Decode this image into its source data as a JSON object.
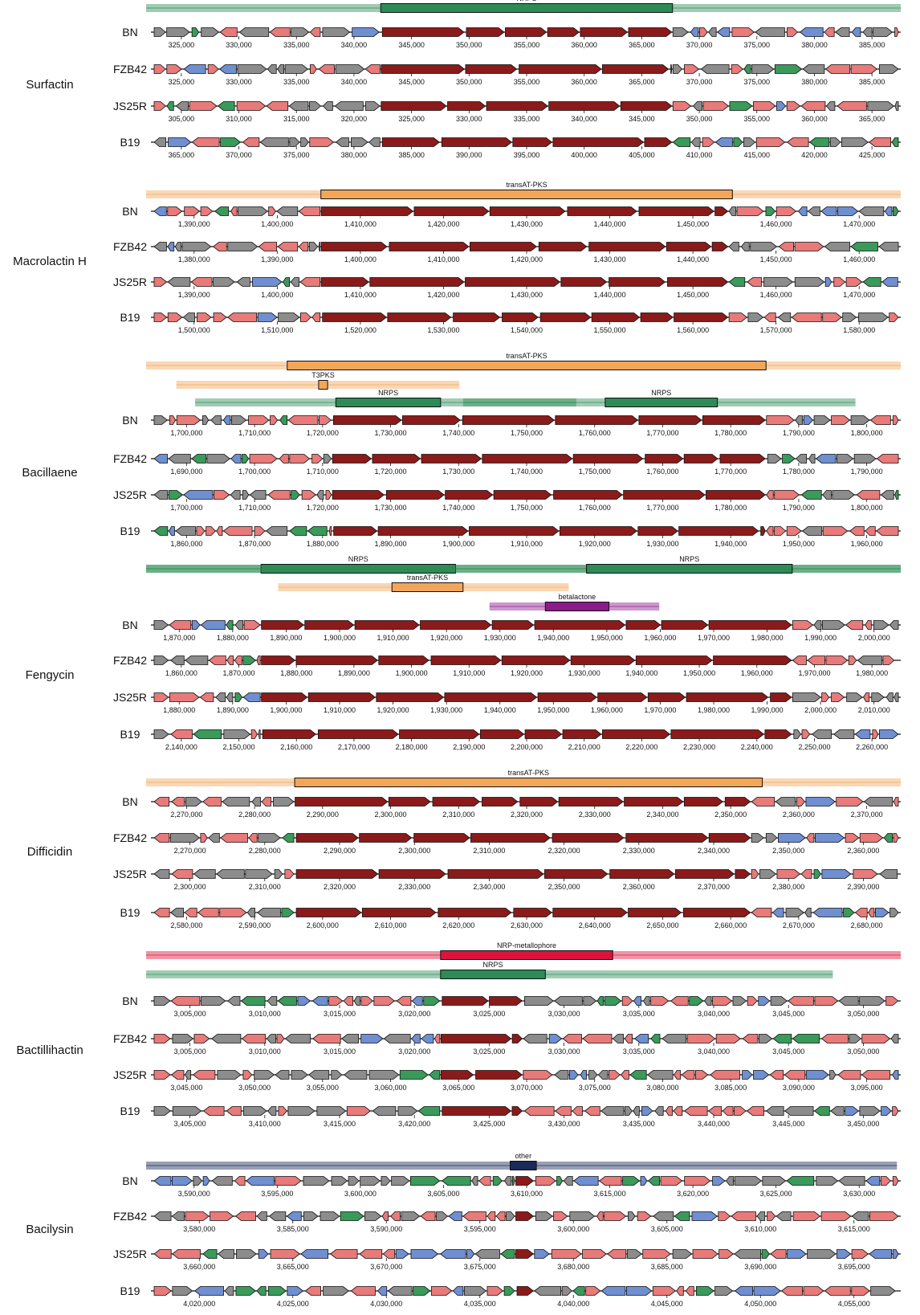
{
  "strains": [
    "BN",
    "FZB42",
    "JS25R",
    "B19"
  ],
  "colors": {
    "nrps": "#2e8b57",
    "pks": "#f2a65a",
    "metallophore": "#dc143c",
    "betalactone": "#8b1a8b",
    "other": "#1a2a5a",
    "core_gene": "#8b1a1a",
    "biosynthetic_additional": "#e87a7a",
    "transport": "#6f8fd1",
    "regulatory": "#3a9a5a",
    "other_gene": "#8c8c8c"
  },
  "clusters": [
    {
      "name": "Surfactin",
      "regions": [
        {
          "label": "NRPS",
          "kind": "nrps",
          "core_start": 0.305,
          "core_end": 0.695,
          "bg_start": 0.0,
          "bg_end": 1.0
        }
      ],
      "core_span": [
        0.305,
        0.695
      ],
      "axes": [
        {
          "ticks": [
            "325,000",
            "330,000",
            "335,000",
            "340,000",
            "345,000",
            "350,000",
            "355,000",
            "360,000",
            "365,000",
            "370,000",
            "375,000",
            "380,000",
            "385,000"
          ]
        },
        {
          "ticks": [
            "325,000",
            "330,000",
            "335,000",
            "340,000",
            "345,000",
            "350,000",
            "355,000",
            "360,000",
            "365,000",
            "370,000",
            "375,000",
            "380,000",
            "385,000"
          ]
        },
        {
          "ticks": [
            "305,000",
            "310,000",
            "315,000",
            "320,000",
            "325,000",
            "330,000",
            "335,000",
            "340,000",
            "345,000",
            "350,000",
            "355,000",
            "360,000",
            "365,000"
          ]
        },
        {
          "ticks": [
            "365,000",
            "370,000",
            "375,000",
            "380,000",
            "385,000",
            "390,000",
            "395,000",
            "400,000",
            "405,000",
            "410,000",
            "415,000",
            "420,000",
            "425,000"
          ]
        }
      ]
    },
    {
      "name": "Macrolactin H",
      "regions": [
        {
          "label": "transAT-PKS",
          "kind": "pks",
          "core_start": 0.225,
          "core_end": 0.775,
          "bg_start": 0.0,
          "bg_end": 1.0
        }
      ],
      "core_span": [
        0.225,
        0.77
      ],
      "axes": [
        {
          "ticks": [
            "1,390,000",
            "1,400,000",
            "1,410,000",
            "1,420,000",
            "1,430,000",
            "1,440,000",
            "1,450,000",
            "1,460,000",
            "1,470,000"
          ]
        },
        {
          "ticks": [
            "1,380,000",
            "1,390,000",
            "1,400,000",
            "1,410,000",
            "1,420,000",
            "1,430,000",
            "1,440,000",
            "1,450,000",
            "1,460,000"
          ]
        },
        {
          "ticks": [
            "1,390,000",
            "1,400,000",
            "1,410,000",
            "1,420,000",
            "1,430,000",
            "1,440,000",
            "1,450,000",
            "1,460,000",
            "1,470,000"
          ]
        },
        {
          "ticks": [
            "1,500,000",
            "1,510,000",
            "1,520,000",
            "1,530,000",
            "1,540,000",
            "1,550,000",
            "1,560,000",
            "1,570,000",
            "1,580,000"
          ]
        }
      ]
    },
    {
      "name": "Bacillaene",
      "regions": [
        {
          "label": "transAT-PKS",
          "kind": "pks",
          "core_start": 0.18,
          "core_end": 0.82,
          "bg_start": 0.0,
          "bg_end": 1.0
        },
        {
          "label": "T3PKS",
          "kind": "pks",
          "core_start": 0.222,
          "core_end": 0.234,
          "bg_start": 0.04,
          "bg_end": 0.415
        },
        {
          "label": "NRPS",
          "kind": "nrps",
          "core_start": 0.605,
          "core_end": 0.755,
          "bg_start": 0.42,
          "bg_end": 0.94
        },
        {
          "label": "NRPS",
          "kind": "nrps",
          "core_start": 0.245,
          "core_end": 0.385,
          "bg_start": 0.065,
          "bg_end": 0.57
        }
      ],
      "core_span": [
        0.24,
        0.82
      ],
      "axes": [
        {
          "ticks": [
            "1,700,000",
            "1,710,000",
            "1,720,000",
            "1,730,000",
            "1,740,000",
            "1,750,000",
            "1,760,000",
            "1,770,000",
            "1,780,000",
            "1,790,000",
            "1,800,000"
          ]
        },
        {
          "ticks": [
            "1,690,000",
            "1,700,000",
            "1,710,000",
            "1,720,000",
            "1,730,000",
            "1,740,000",
            "1,750,000",
            "1,760,000",
            "1,770,000",
            "1,780,000",
            "1,790,000"
          ]
        },
        {
          "ticks": [
            "1,700,000",
            "1,710,000",
            "1,720,000",
            "1,730,000",
            "1,740,000",
            "1,750,000",
            "1,760,000",
            "1,770,000",
            "1,780,000",
            "1,790,000",
            "1,800,000"
          ]
        },
        {
          "ticks": [
            "1,860,000",
            "1,870,000",
            "1,880,000",
            "1,890,000",
            "1,900,000",
            "1,910,000",
            "1,920,000",
            "1,930,000",
            "1,940,000",
            "1,950,000",
            "1,960,000"
          ]
        }
      ]
    },
    {
      "name": "Fengycin",
      "regions": [
        {
          "label": "NRPS",
          "kind": "nrps",
          "core_start": 0.145,
          "core_end": 0.405,
          "bg_start": 0.0,
          "bg_end": 1.0
        },
        {
          "label": "NRPS",
          "kind": "nrps",
          "core_start": 0.58,
          "core_end": 0.855,
          "bg_start": 0.0,
          "bg_end": 1.0
        },
        {
          "label": "transAT-PKS",
          "kind": "pks",
          "core_start": 0.32,
          "core_end": 0.415,
          "bg_start": 0.175,
          "bg_end": 0.56
        },
        {
          "label": "betalactone",
          "kind": "betalactone",
          "core_start": 0.525,
          "core_end": 0.61,
          "bg_start": 0.455,
          "bg_end": 0.68
        }
      ],
      "core_span": [
        0.145,
        0.855
      ],
      "axes": [
        {
          "ticks": [
            "1,870,000",
            "1,880,000",
            "1,890,000",
            "1,900,000",
            "1,910,000",
            "1,920,000",
            "1,930,000",
            "1,940,000",
            "1,950,000",
            "1,960,000",
            "1,970,000",
            "1,980,000",
            "1,990,000",
            "2,000,000"
          ]
        },
        {
          "ticks": [
            "1,860,000",
            "1,870,000",
            "1,880,000",
            "1,890,000",
            "1,900,000",
            "1,910,000",
            "1,920,000",
            "1,930,000",
            "1,940,000",
            "1,950,000",
            "1,960,000",
            "1,970,000",
            "1,980,000"
          ]
        },
        {
          "ticks": [
            "1,880,000",
            "1,890,000",
            "1,900,000",
            "1,910,000",
            "1,920,000",
            "1,930,000",
            "1,940,000",
            "1,950,000",
            "1,960,000",
            "1,970,000",
            "1,980,000",
            "1,990,000",
            "2,000,000",
            "2,010,000"
          ]
        },
        {
          "ticks": [
            "2,140,000",
            "2,150,000",
            "2,160,000",
            "2,170,000",
            "2,180,000",
            "2,190,000",
            "2,200,000",
            "2,210,000",
            "2,220,000",
            "2,230,000",
            "2,240,000",
            "2,250,000",
            "2,260,000"
          ]
        }
      ]
    },
    {
      "name": "Difficidin",
      "regions": [
        {
          "label": "transAT-PKS",
          "kind": "pks",
          "core_start": 0.19,
          "core_end": 0.815,
          "bg_start": 0.0,
          "bg_end": 1.0
        }
      ],
      "core_span": [
        0.19,
        0.8
      ],
      "axes": [
        {
          "ticks": [
            "2,270,000",
            "2,280,000",
            "2,290,000",
            "2,300,000",
            "2,310,000",
            "2,320,000",
            "2,330,000",
            "2,340,000",
            "2,350,000",
            "2,360,000",
            "2,370,000"
          ]
        },
        {
          "ticks": [
            "2,270,000",
            "2,280,000",
            "2,290,000",
            "2,300,000",
            "2,310,000",
            "2,320,000",
            "2,330,000",
            "2,340,000",
            "2,350,000",
            "2,360,000"
          ]
        },
        {
          "ticks": [
            "2,300,000",
            "2,310,000",
            "2,320,000",
            "2,330,000",
            "2,340,000",
            "2,350,000",
            "2,360,000",
            "2,370,000",
            "2,380,000",
            "2,390,000"
          ]
        },
        {
          "ticks": [
            "2,580,000",
            "2,590,000",
            "2,600,000",
            "2,610,000",
            "2,620,000",
            "2,630,000",
            "2,640,000",
            "2,650,000",
            "2,660,000",
            "2,670,000",
            "2,680,000"
          ]
        }
      ]
    },
    {
      "name": "Bactillihactin",
      "regions": [
        {
          "label": "NRP-metallophore",
          "kind": "metallophore",
          "core_start": 0.385,
          "core_end": 0.615,
          "bg_start": 0.0,
          "bg_end": 1.0
        },
        {
          "label": "NRPS",
          "kind": "nrps",
          "core_start": 0.385,
          "core_end": 0.525,
          "bg_start": 0.0,
          "bg_end": 0.91
        }
      ],
      "core_span": [
        0.385,
        0.495
      ],
      "axes": [
        {
          "ticks": [
            "3,005,000",
            "3,010,000",
            "3,015,000",
            "3,020,000",
            "3,025,000",
            "3,030,000",
            "3,035,000",
            "3,040,000",
            "3,045,000",
            "3,050,000"
          ]
        },
        {
          "ticks": [
            "3,005,000",
            "3,010,000",
            "3,015,000",
            "3,020,000",
            "3,025,000",
            "3,030,000",
            "3,035,000",
            "3,040,000",
            "3,045,000",
            "3,050,000"
          ]
        },
        {
          "ticks": [
            "3,045,000",
            "3,050,000",
            "3,055,000",
            "3,060,000",
            "3,065,000",
            "3,070,000",
            "3,075,000",
            "3,080,000",
            "3,085,000",
            "3,090,000",
            "3,095,000"
          ]
        },
        {
          "ticks": [
            "3,405,000",
            "3,410,000",
            "3,415,000",
            "3,420,000",
            "3,425,000",
            "3,430,000",
            "3,435,000",
            "3,440,000",
            "3,445,000",
            "3,450,000"
          ]
        }
      ]
    },
    {
      "name": "Bacilysin",
      "regions": [
        {
          "label": "other",
          "kind": "other",
          "core_start": 0.478,
          "core_end": 0.513,
          "bg_start": 0.0,
          "bg_end": 0.995
        }
      ],
      "core_span": [
        0.485,
        0.51
      ],
      "axes": [
        {
          "ticks": [
            "3,590,000",
            "3,595,000",
            "3,600,000",
            "3,605,000",
            "3,610,000",
            "3,615,000",
            "3,620,000",
            "3,625,000",
            "3,630,000"
          ]
        },
        {
          "ticks": [
            "3,580,000",
            "3,585,000",
            "3,590,000",
            "3,595,000",
            "3,600,000",
            "3,605,000",
            "3,610,000",
            "3,615,000"
          ]
        },
        {
          "ticks": [
            "3,660,000",
            "3,665,000",
            "3,670,000",
            "3,675,000",
            "3,680,000",
            "3,685,000",
            "3,690,000",
            "3,695,000"
          ]
        },
        {
          "ticks": [
            "4,020,000",
            "4,025,000",
            "4,030,000",
            "4,035,000",
            "4,040,000",
            "4,045,000",
            "4,050,000",
            "4,055,000"
          ]
        }
      ]
    }
  ]
}
